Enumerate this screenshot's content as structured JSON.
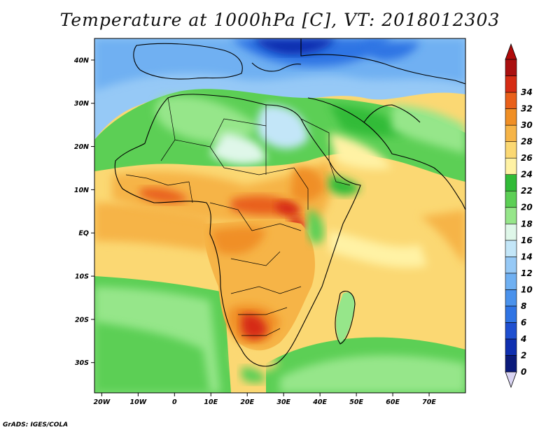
{
  "title": "Temperature at 1000hPa [C], VT: 2018012303",
  "credit": "GrADS: IGES/COLA",
  "map": {
    "lon_range": [
      -22,
      80
    ],
    "lat_range": [
      -37,
      45
    ],
    "lon_ticks": [
      {
        "value": -20,
        "label": "20W"
      },
      {
        "value": -10,
        "label": "10W"
      },
      {
        "value": 0,
        "label": "0"
      },
      {
        "value": 10,
        "label": "10E"
      },
      {
        "value": 20,
        "label": "20E"
      },
      {
        "value": 30,
        "label": "30E"
      },
      {
        "value": 40,
        "label": "40E"
      },
      {
        "value": 50,
        "label": "50E"
      },
      {
        "value": 60,
        "label": "60E"
      },
      {
        "value": 70,
        "label": "70E"
      }
    ],
    "lat_ticks": [
      {
        "value": 40,
        "label": "40N"
      },
      {
        "value": 30,
        "label": "30N"
      },
      {
        "value": 20,
        "label": "20N"
      },
      {
        "value": 10,
        "label": "10N"
      },
      {
        "value": 0,
        "label": "EQ"
      },
      {
        "value": -10,
        "label": "10S"
      },
      {
        "value": -20,
        "label": "20S"
      },
      {
        "value": -30,
        "label": "30S"
      }
    ]
  },
  "colorbar": {
    "levels": [
      0,
      2,
      4,
      6,
      8,
      10,
      12,
      14,
      16,
      18,
      20,
      22,
      24,
      26,
      28,
      30,
      32,
      34
    ],
    "labels": [
      "0",
      "2",
      "4",
      "6",
      "8",
      "10",
      "12",
      "14",
      "16",
      "18",
      "20",
      "22",
      "24",
      "26",
      "28",
      "30",
      "32",
      "34"
    ],
    "colors": [
      "#0a1a7a",
      "#0f2fb0",
      "#1e4fd0",
      "#2f74e4",
      "#4a92ec",
      "#6fb0f2",
      "#96c9f6",
      "#c3e6f8",
      "#dff7e9",
      "#96e68a",
      "#5ccf55",
      "#31bb37",
      "#fff2a4",
      "#fbd873",
      "#f6b447",
      "#f08f25",
      "#e9601a",
      "#d62c14",
      "#aa1010"
    ],
    "below_color": "#d9d4f2",
    "above_color": "#b00b0b"
  }
}
